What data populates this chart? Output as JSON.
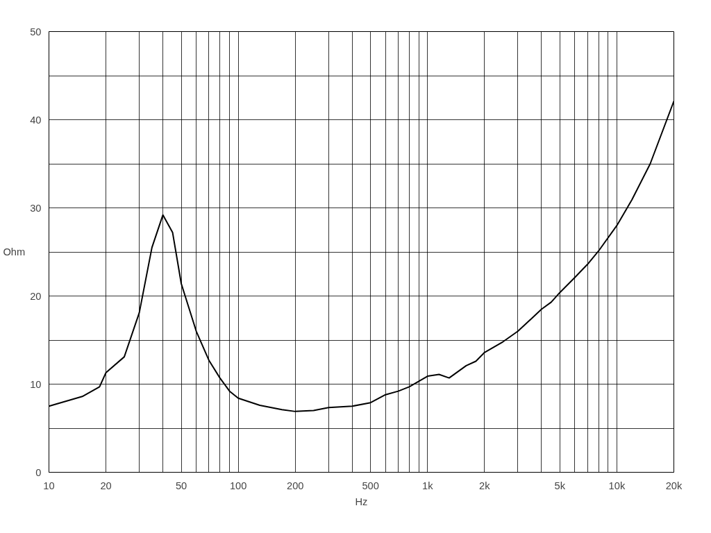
{
  "chart_data": {
    "type": "line",
    "xlabel": "Hz",
    "ylabel": "Ohm",
    "log": "x",
    "grid": true,
    "marker": "none",
    "line_style": "solid",
    "x": [
      10,
      15,
      18.5,
      20,
      25,
      30,
      35,
      40,
      45,
      50,
      60,
      70,
      80,
      90,
      100,
      130,
      170,
      200,
      250,
      300,
      400,
      500,
      600,
      700,
      800,
      1000,
      1150,
      1300,
      1600,
      1800,
      2000,
      2500,
      3000,
      4000,
      4500,
      5000,
      6000,
      7000,
      8000,
      10000,
      12000,
      15000,
      20000
    ],
    "series": [
      {
        "color": "#000000",
        "values": [
          7.5,
          8.6,
          9.7,
          11.3,
          13.1,
          18.1,
          25.5,
          29.2,
          27.2,
          21.4,
          16.0,
          12.7,
          10.7,
          9.2,
          8.4,
          7.6,
          7.1,
          6.9,
          7.0,
          7.35,
          7.5,
          7.9,
          8.8,
          9.2,
          9.7,
          10.9,
          11.1,
          10.7,
          12.1,
          12.6,
          13.6,
          14.8,
          16.0,
          18.5,
          19.3,
          20.4,
          22.1,
          23.6,
          25.1,
          28.0,
          30.9,
          35.0,
          42.1
        ]
      }
    ],
    "xlim": [
      10,
      20000
    ],
    "ylim": [
      0,
      50
    ],
    "xticks": [
      10,
      20,
      {
        "value": 30,
        "label": null
      },
      {
        "value": 40,
        "label": null
      },
      50,
      {
        "value": 60,
        "label": null
      },
      {
        "value": 70,
        "label": null
      },
      {
        "value": 80,
        "label": null
      },
      {
        "value": 90,
        "label": null
      },
      100,
      200,
      {
        "value": 300,
        "label": null
      },
      {
        "value": 400,
        "label": null
      },
      500,
      {
        "value": 600,
        "label": null
      },
      {
        "value": 700,
        "label": null
      },
      {
        "value": 800,
        "label": null
      },
      {
        "value": 900,
        "label": null
      },
      {
        "value": 1000,
        "label": "1k"
      },
      {
        "value": 2000,
        "label": "2k"
      },
      {
        "value": 3000,
        "label": null
      },
      {
        "value": 4000,
        "label": null
      },
      {
        "value": 5000,
        "label": "5k"
      },
      {
        "value": 6000,
        "label": null
      },
      {
        "value": 7000,
        "label": null
      },
      {
        "value": 8000,
        "label": null
      },
      {
        "value": 9000,
        "label": null
      },
      {
        "value": 10000,
        "label": "10k"
      },
      {
        "value": 20000,
        "label": "20k"
      }
    ],
    "yticks": [
      0,
      {
        "value": 5,
        "label": null
      },
      10,
      {
        "value": 15,
        "label": null
      },
      20,
      {
        "value": 25,
        "label": null
      },
      30,
      {
        "value": 35,
        "label": null
      },
      40,
      {
        "value": 45,
        "label": null
      },
      50
    ]
  }
}
